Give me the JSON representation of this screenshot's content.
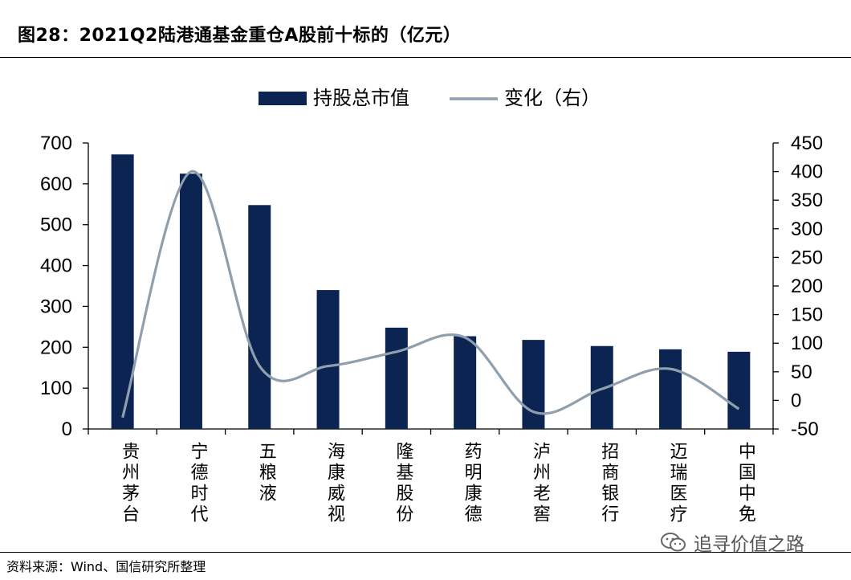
{
  "title": "图28：2021Q2陆港通基金重仓A股前十标的（亿元）",
  "source": "资料来源：Wind、国信研究所整理",
  "watermark": "追寻价值之路",
  "chart_data": {
    "type": "bar",
    "categories": [
      "贵州茅台",
      "宁德时代",
      "五粮液",
      "海康威视",
      "隆基股份",
      "药明康德",
      "泸州老窖",
      "招商银行",
      "迈瑞医疗",
      "中国中免"
    ],
    "series": [
      {
        "name": "持股总市值",
        "type": "bar",
        "axis": "left",
        "color": "#0b2452",
        "values": [
          672,
          625,
          548,
          340,
          248,
          227,
          218,
          203,
          195,
          189
        ]
      },
      {
        "name": "变化（右）",
        "type": "line",
        "axis": "right",
        "color": "#8f9fad",
        "values": [
          -30,
          400,
          60,
          60,
          85,
          110,
          -20,
          20,
          55,
          -15
        ]
      }
    ],
    "y_left": {
      "range": [
        0,
        700
      ],
      "ticks": [
        0,
        100,
        200,
        300,
        400,
        500,
        600,
        700
      ]
    },
    "y_right": {
      "range": [
        -50,
        450
      ],
      "ticks": [
        -50,
        0,
        50,
        100,
        150,
        200,
        250,
        300,
        350,
        400,
        450
      ]
    },
    "legend_position": "top-center",
    "grid": false
  }
}
